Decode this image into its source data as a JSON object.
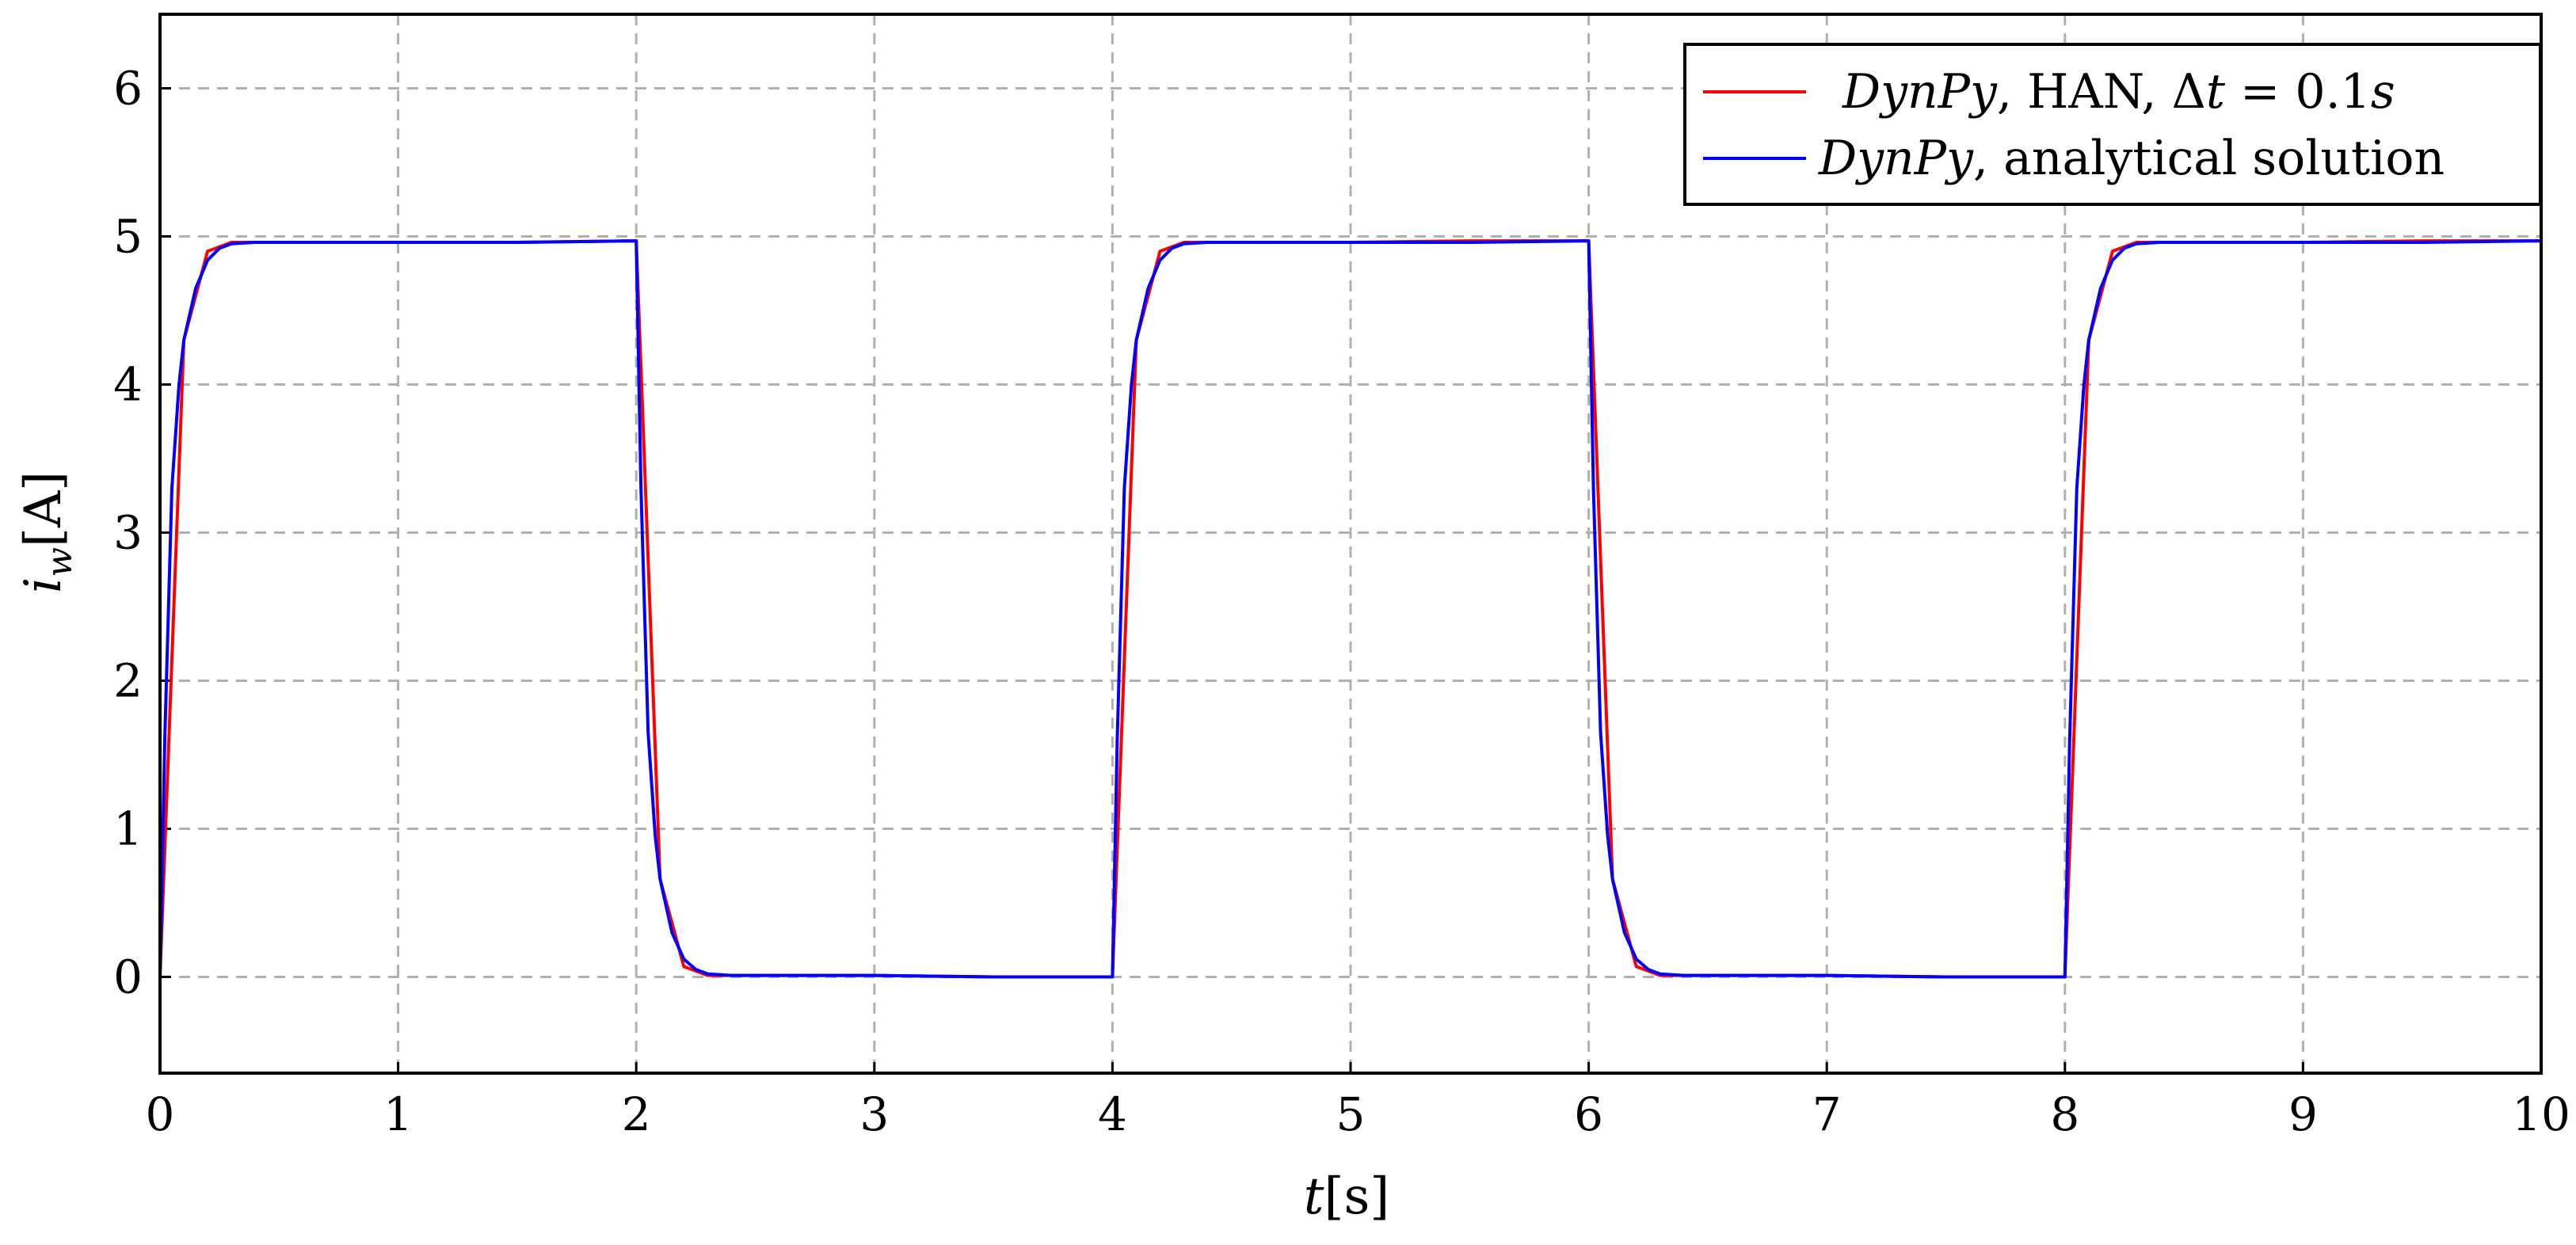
{
  "chart_data": {
    "type": "line",
    "xlabel": {
      "var": "t",
      "unit": "[s]"
    },
    "ylabel": {
      "var": "i",
      "sub": "w",
      "unit": "[A]"
    },
    "xlim": [
      0,
      10
    ],
    "ylim": [
      -0.65,
      6.5
    ],
    "xticks": [
      "0",
      "1",
      "2",
      "3",
      "4",
      "5",
      "6",
      "7",
      "8",
      "9",
      "10"
    ],
    "yticks": [
      "0",
      "1",
      "2",
      "3",
      "4",
      "5",
      "6"
    ],
    "grid": true,
    "legend_position": "top-right",
    "legend": [
      {
        "italic": "DynPy",
        "rest": ", HAN, Δ",
        "math": "t",
        "rest2": " = 0.1",
        "math2": "s"
      },
      {
        "italic": "DynPy",
        "rest": ", analytical solution"
      }
    ],
    "colors": {
      "han": "#ff0000",
      "analytical": "#0000ff",
      "grid": "#b0b0b0"
    },
    "series": [
      {
        "name_ref": "legend.0",
        "color": "#ff0000",
        "x": [
          0,
          0.1,
          0.2,
          0.3,
          0.5,
          1.0,
          1.5,
          1.99,
          2.0,
          2.1,
          2.2,
          2.3,
          2.5,
          3.0,
          3.5,
          3.99,
          4.0,
          4.1,
          4.2,
          4.3,
          4.5,
          5.0,
          5.5,
          5.99,
          6.0,
          6.1,
          6.2,
          6.3,
          6.5,
          7.0,
          7.5,
          7.99,
          8.0,
          8.1,
          8.2,
          8.3,
          8.5,
          9.0,
          9.5,
          10.0
        ],
        "y": [
          0,
          4.3,
          4.9,
          4.96,
          4.96,
          4.96,
          4.96,
          4.97,
          4.97,
          0.66,
          0.07,
          0.01,
          0.01,
          0.01,
          0.0,
          0.0,
          0.0,
          4.3,
          4.9,
          4.96,
          4.96,
          4.96,
          4.97,
          4.97,
          4.97,
          0.66,
          0.07,
          0.01,
          0.01,
          0.01,
          0.0,
          0.0,
          0.0,
          4.3,
          4.9,
          4.96,
          4.96,
          4.96,
          4.97,
          4.97
        ]
      },
      {
        "name_ref": "legend.1",
        "color": "#0000ff",
        "x": [
          0,
          0.02,
          0.05,
          0.08,
          0.1,
          0.15,
          0.2,
          0.25,
          0.3,
          0.4,
          0.5,
          1.0,
          1.5,
          2.0,
          2.02,
          2.05,
          2.08,
          2.1,
          2.15,
          2.2,
          2.25,
          2.3,
          2.4,
          2.5,
          3.0,
          3.5,
          4.0,
          4.02,
          4.05,
          4.08,
          4.1,
          4.15,
          4.2,
          4.25,
          4.3,
          4.4,
          4.5,
          5.0,
          5.5,
          6.0,
          6.02,
          6.05,
          6.08,
          6.1,
          6.15,
          6.2,
          6.25,
          6.3,
          6.4,
          6.5,
          7.0,
          7.5,
          8.0,
          8.02,
          8.05,
          8.08,
          8.1,
          8.15,
          8.2,
          8.25,
          8.3,
          8.4,
          8.5,
          9.0,
          9.5,
          10.0
        ],
        "y": [
          0,
          1.6,
          3.3,
          4.0,
          4.3,
          4.65,
          4.84,
          4.92,
          4.95,
          4.96,
          4.96,
          4.96,
          4.96,
          4.97,
          3.3,
          1.65,
          0.95,
          0.66,
          0.3,
          0.12,
          0.05,
          0.02,
          0.01,
          0.01,
          0.01,
          0.0,
          0.0,
          1.6,
          3.3,
          4.0,
          4.3,
          4.65,
          4.84,
          4.92,
          4.95,
          4.96,
          4.96,
          4.96,
          4.96,
          4.97,
          3.3,
          1.65,
          0.95,
          0.66,
          0.3,
          0.12,
          0.05,
          0.02,
          0.01,
          0.01,
          0.01,
          0.0,
          0.0,
          1.6,
          3.3,
          4.0,
          4.3,
          4.65,
          4.84,
          4.92,
          4.95,
          4.96,
          4.96,
          4.96,
          4.96,
          4.97
        ]
      }
    ]
  }
}
